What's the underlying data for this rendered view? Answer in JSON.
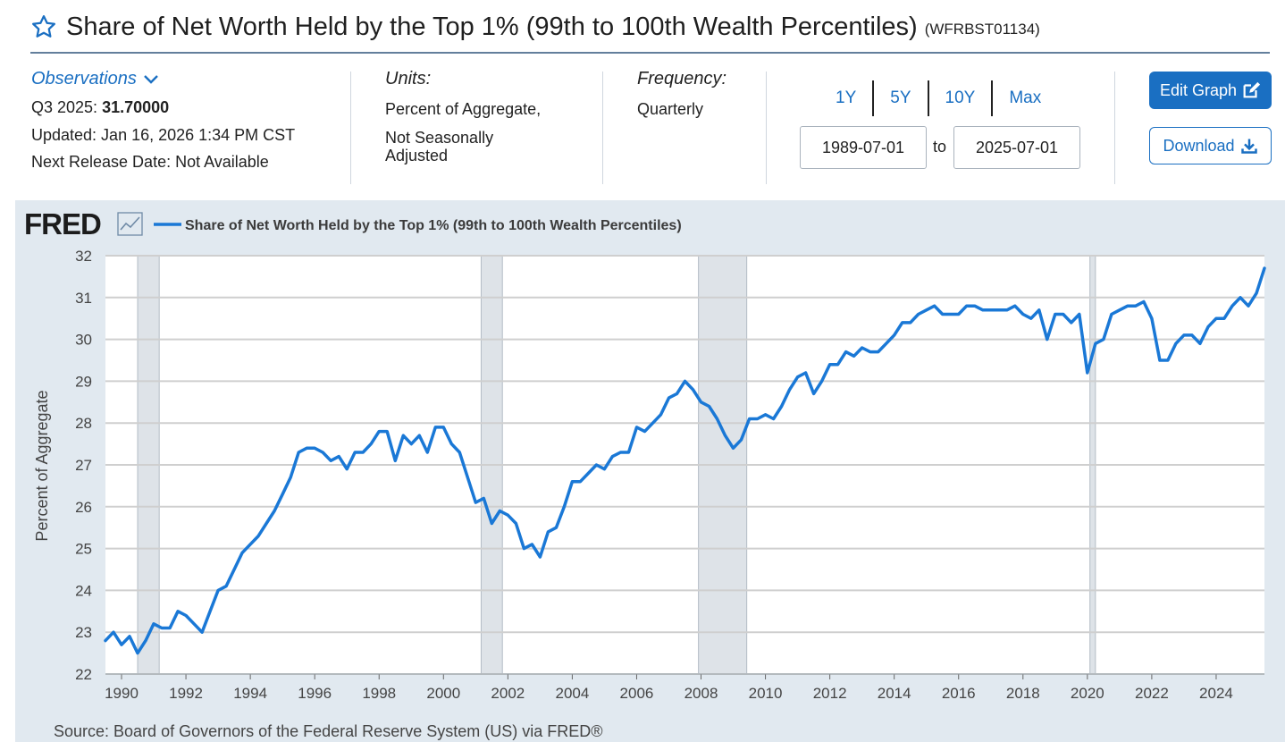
{
  "header": {
    "title": "Share of Net Worth Held by the Top 1% (99th to 100th Wealth Percentiles)",
    "series_id": "(WFRBST01134)",
    "star_icon": "star-outline-icon"
  },
  "meta": {
    "observations_label": "Observations",
    "obs_period": "Q3 2025:",
    "obs_value": "31.70000",
    "updated": "Updated: Jan 16, 2026 1:34 PM CST",
    "next_release": "Next Release Date: Not Available",
    "units_label": "Units:",
    "units_line1": "Percent of Aggregate,",
    "units_line2": "Not Seasonally",
    "units_line3": "Adjusted",
    "frequency_label": "Frequency:",
    "frequency_value": "Quarterly"
  },
  "controls": {
    "ranges": [
      "1Y",
      "5Y",
      "10Y",
      "Max"
    ],
    "date_from": "1989-07-01",
    "to_label": "to",
    "date_to": "2025-07-01",
    "edit_label": "Edit Graph",
    "download_label": "Download"
  },
  "chart_data": {
    "type": "line",
    "brand": "FRED",
    "legend_label": "Share of Net Worth Held by the Top 1% (99th to 100th Wealth Percentiles)",
    "ylabel": "Percent of Aggregate",
    "source": "Source: Board of Governors of the Federal Reserve System (US) via FRED®",
    "ylim": [
      22,
      32
    ],
    "xlim": [
      1989.5,
      2025.5
    ],
    "yticks": [
      22,
      23,
      24,
      25,
      26,
      27,
      28,
      29,
      30,
      31,
      32
    ],
    "xticks": [
      1990,
      1992,
      1994,
      1996,
      1998,
      2000,
      2002,
      2004,
      2006,
      2008,
      2010,
      2012,
      2014,
      2016,
      2018,
      2020,
      2022,
      2024
    ],
    "line_color": "#1a78d6",
    "recession_color": "#dee3e8",
    "recessions": [
      [
        1990.5,
        1991.17
      ],
      [
        2001.17,
        2001.83
      ],
      [
        2007.92,
        2009.42
      ],
      [
        2020.08,
        2020.25
      ]
    ],
    "series": [
      {
        "name": "Share of Net Worth Held by the Top 1% (99th to 100th Wealth Percentiles)",
        "start": "1989-07-01",
        "frequency": "quarterly",
        "values": [
          22.8,
          23.0,
          22.7,
          22.9,
          22.5,
          22.8,
          23.2,
          23.1,
          23.1,
          23.5,
          23.4,
          23.2,
          23.0,
          23.5,
          24.0,
          24.1,
          24.5,
          24.9,
          25.1,
          25.3,
          25.6,
          25.9,
          26.3,
          26.7,
          27.3,
          27.4,
          27.4,
          27.3,
          27.1,
          27.2,
          26.9,
          27.3,
          27.3,
          27.5,
          27.8,
          27.8,
          27.1,
          27.7,
          27.5,
          27.7,
          27.3,
          27.9,
          27.9,
          27.5,
          27.3,
          26.7,
          26.1,
          26.2,
          25.6,
          25.9,
          25.8,
          25.6,
          25.0,
          25.1,
          24.8,
          25.4,
          25.5,
          26.0,
          26.6,
          26.6,
          26.8,
          27.0,
          26.9,
          27.2,
          27.3,
          27.3,
          27.9,
          27.8,
          28.0,
          28.2,
          28.6,
          28.7,
          29.0,
          28.8,
          28.5,
          28.4,
          28.1,
          27.7,
          27.4,
          27.6,
          28.1,
          28.1,
          28.2,
          28.1,
          28.4,
          28.8,
          29.1,
          29.2,
          28.7,
          29.0,
          29.4,
          29.4,
          29.7,
          29.6,
          29.8,
          29.7,
          29.7,
          29.9,
          30.1,
          30.4,
          30.4,
          30.6,
          30.7,
          30.8,
          30.6,
          30.6,
          30.6,
          30.8,
          30.8,
          30.7,
          30.7,
          30.7,
          30.7,
          30.8,
          30.6,
          30.5,
          30.7,
          30.0,
          30.6,
          30.6,
          30.4,
          30.6,
          29.2,
          29.9,
          30.0,
          30.6,
          30.7,
          30.8,
          30.8,
          30.9,
          30.5,
          29.5,
          29.5,
          29.9,
          30.1,
          30.1,
          29.9,
          30.3,
          30.5,
          30.5,
          30.8,
          31.0,
          30.8,
          31.1,
          31.7
        ]
      }
    ]
  }
}
